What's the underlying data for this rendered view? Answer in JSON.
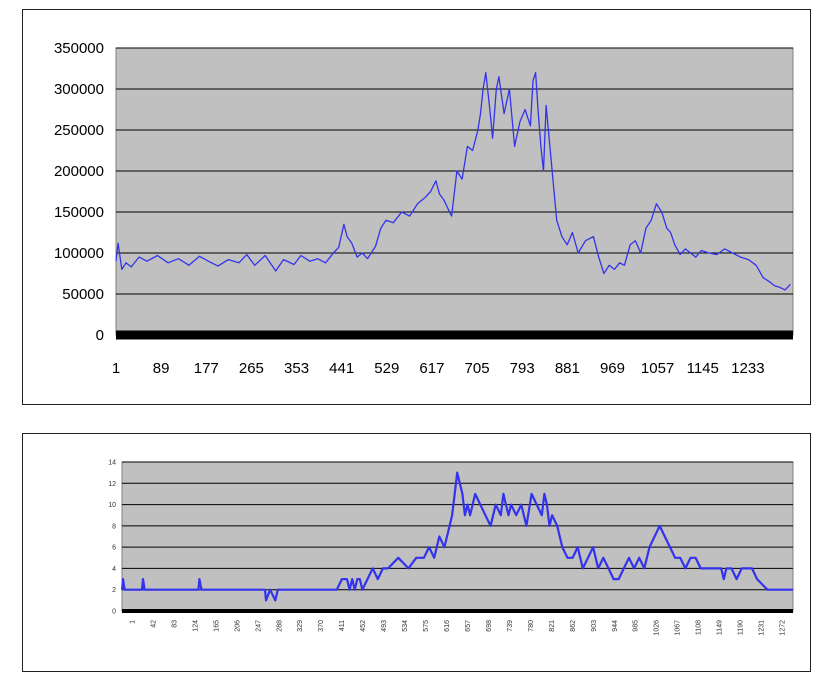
{
  "chart_data": [
    {
      "type": "line",
      "title": "",
      "xlabel": "",
      "ylabel": "",
      "ylim": [
        0,
        350000
      ],
      "yticks": [
        "0",
        "50000",
        "100000",
        "150000",
        "200000",
        "250000",
        "300000",
        "350000"
      ],
      "xlim": [
        1,
        1290
      ],
      "xticks": [
        "1",
        "89",
        "177",
        "265",
        "353",
        "441",
        "529",
        "617",
        "705",
        "793",
        "881",
        "969",
        "1057",
        "1145",
        "1233"
      ],
      "grid": true,
      "legend": "none",
      "line_color": "#3333ee",
      "plot_background": "#c0c0c0",
      "series": [
        {
          "x": [
            1,
            5,
            12,
            20,
            30,
            45,
            60,
            80,
            100,
            120,
            140,
            160,
            177,
            195,
            215,
            235,
            250,
            265,
            285,
            305,
            320,
            340,
            353,
            370,
            385,
            400,
            415,
            425,
            435,
            441,
            450,
            460,
            470,
            480,
            495,
            505,
            515,
            529,
            545,
            560,
            575,
            590,
            600,
            610,
            617,
            625,
            640,
            650,
            660,
            670,
            680,
            690,
            695,
            700,
            705,
            712,
            718,
            725,
            730,
            740,
            750,
            760,
            770,
            780,
            790,
            795,
            800,
            805,
            810,
            815,
            820,
            830,
            840,
            850,
            860,
            870,
            881,
            895,
            910,
            920,
            930,
            940,
            950,
            960,
            969,
            980,
            990,
            1000,
            1010,
            1020,
            1030,
            1040,
            1050,
            1057,
            1065,
            1075,
            1085,
            1095,
            1105,
            1115,
            1130,
            1145,
            1160,
            1175,
            1190,
            1205,
            1220,
            1233,
            1245,
            1255,
            1265,
            1275,
            1285
          ],
          "values": [
            90000,
            112000,
            80000,
            88000,
            83000,
            95000,
            90000,
            97000,
            88000,
            93000,
            85000,
            96000,
            90000,
            84000,
            92000,
            88000,
            98000,
            85000,
            97000,
            78000,
            92000,
            86000,
            97000,
            90000,
            93000,
            88000,
            100000,
            107000,
            135000,
            120000,
            112000,
            95000,
            100000,
            93000,
            108000,
            130000,
            140000,
            137000,
            150000,
            145000,
            160000,
            168000,
            175000,
            188000,
            172000,
            165000,
            145000,
            200000,
            190000,
            230000,
            225000,
            250000,
            270000,
            300000,
            320000,
            280000,
            240000,
            300000,
            315000,
            270000,
            300000,
            230000,
            260000,
            275000,
            255000,
            310000,
            320000,
            270000,
            230000,
            200000,
            280000,
            210000,
            140000,
            120000,
            110000,
            125000,
            100000,
            115000,
            120000,
            95000,
            75000,
            85000,
            80000,
            88000,
            85000,
            110000,
            115000,
            100000,
            130000,
            140000,
            160000,
            150000,
            130000,
            125000,
            110000,
            98000,
            105000,
            100000,
            95000,
            103000,
            100000,
            98000,
            105000,
            100000,
            95000,
            92000,
            85000,
            70000,
            65000,
            60000,
            58000,
            55000,
            62000
          ]
        }
      ]
    },
    {
      "type": "line",
      "title": "",
      "xlabel": "",
      "ylabel": "",
      "ylim": [
        0,
        14
      ],
      "yticks": [
        "0",
        "2",
        "4",
        "6",
        "8",
        "10",
        "12",
        "14"
      ],
      "xlim": [
        1,
        1310
      ],
      "xticks": [
        "1",
        "42",
        "83",
        "124",
        "165",
        "206",
        "247",
        "288",
        "329",
        "370",
        "411",
        "452",
        "493",
        "534",
        "575",
        "616",
        "657",
        "698",
        "739",
        "780",
        "821",
        "862",
        "903",
        "944",
        "985",
        "1026",
        "1067",
        "1108",
        "1149",
        "1190",
        "1231",
        "1272"
      ],
      "grid": true,
      "legend": "none",
      "line_color": "#3333ee",
      "plot_background": "#c0c0c0",
      "series": [
        {
          "x": [
            1,
            3,
            6,
            10,
            40,
            42,
            45,
            150,
            152,
            156,
            280,
            282,
            290,
            300,
            305,
            310,
            320,
            400,
            420,
            430,
            440,
            445,
            450,
            455,
            460,
            465,
            470,
            480,
            490,
            500,
            510,
            520,
            540,
            560,
            575,
            590,
            600,
            610,
            620,
            630,
            640,
            645,
            650,
            655,
            660,
            665,
            670,
            675,
            680,
            690,
            700,
            710,
            720,
            730,
            740,
            745,
            750,
            755,
            760,
            770,
            780,
            790,
            800,
            810,
            820,
            825,
            830,
            835,
            840,
            850,
            860,
            870,
            880,
            890,
            900,
            910,
            920,
            930,
            940,
            950,
            960,
            970,
            980,
            990,
            1000,
            1010,
            1020,
            1030,
            1040,
            1050,
            1060,
            1070,
            1080,
            1090,
            1100,
            1110,
            1120,
            1130,
            1150,
            1170,
            1175,
            1180,
            1190,
            1200,
            1210,
            1230,
            1240,
            1260,
            1280,
            1310
          ],
          "values": [
            2,
            3,
            2,
            2,
            2,
            3,
            2,
            2,
            3,
            2,
            2,
            1,
            2,
            1,
            2,
            2,
            2,
            2,
            2,
            3,
            3,
            2,
            3,
            2,
            3,
            3,
            2,
            3,
            4,
            3,
            4,
            4,
            5,
            4,
            5,
            5,
            6,
            5,
            7,
            6,
            8,
            9,
            11,
            13,
            12,
            11,
            9,
            10,
            9,
            11,
            10,
            9,
            8,
            10,
            9,
            11,
            10,
            9,
            10,
            9,
            10,
            8,
            11,
            10,
            9,
            11,
            10,
            8,
            9,
            8,
            6,
            5,
            5,
            6,
            4,
            5,
            6,
            4,
            5,
            4,
            3,
            3,
            4,
            5,
            4,
            5,
            4,
            6,
            7,
            8,
            7,
            6,
            5,
            5,
            4,
            5,
            5,
            4,
            4,
            4,
            3,
            4,
            4,
            3,
            4,
            4,
            3,
            2,
            2,
            2
          ]
        }
      ]
    }
  ]
}
